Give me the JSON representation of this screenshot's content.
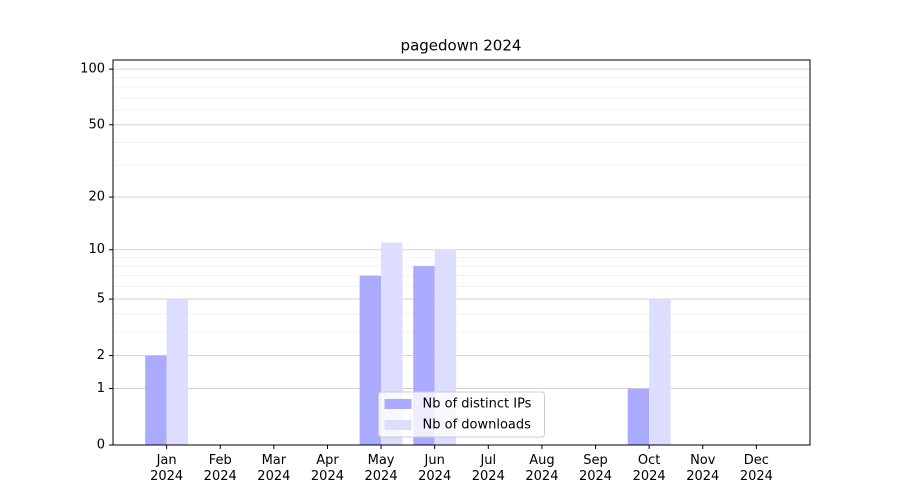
{
  "chart_data": {
    "type": "bar",
    "title": "pagedown 2024",
    "categories": [
      "Jan\n2024",
      "Feb\n2024",
      "Mar\n2024",
      "Apr\n2024",
      "May\n2024",
      "Jun\n2024",
      "Jul\n2024",
      "Aug\n2024",
      "Sep\n2024",
      "Oct\n2024",
      "Nov\n2024",
      "Dec\n2024"
    ],
    "series": [
      {
        "name": "Nb of distinct IPs",
        "color": "#aaaaff",
        "values": [
          2,
          0,
          0,
          0,
          7,
          8,
          0,
          0,
          0,
          1,
          0,
          0
        ]
      },
      {
        "name": "Nb of downloads",
        "color": "#ddddff",
        "values": [
          5,
          0,
          0,
          0,
          11,
          10,
          0,
          0,
          0,
          5,
          0,
          0
        ]
      }
    ],
    "yscale": "symlog",
    "ylim": [
      0,
      112
    ],
    "yticks": [
      0,
      1,
      2,
      5,
      10,
      20,
      50,
      100
    ],
    "grid": true,
    "legend": "lower center"
  }
}
